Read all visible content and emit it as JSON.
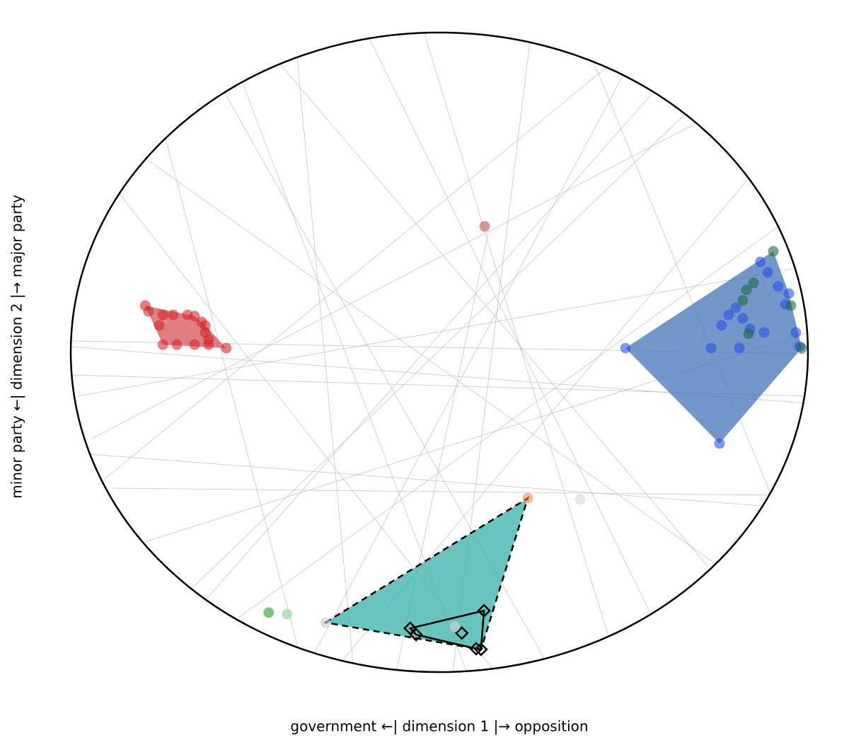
{
  "chart_data": {
    "type": "scatter",
    "x_label": "government ←| dimension 1 |→ opposition",
    "y_label": "minor party ←| dimension 2 |→ major party",
    "xlim": [
      -1,
      1
    ],
    "ylim": [
      -1,
      1
    ],
    "series": [
      {
        "color": "#d62728",
        "marker": "circle",
        "x": [
          -0.798,
          -0.789,
          -0.75,
          -0.722,
          -0.683,
          -0.664,
          -0.645,
          -0.635,
          -0.635,
          -0.626,
          -0.626,
          -0.664,
          -0.712,
          -0.75,
          -0.578,
          -0.76
        ],
        "y": [
          0.146,
          0.128,
          0.117,
          0.117,
          0.117,
          0.113,
          0.095,
          0.084,
          0.062,
          0.04,
          0.024,
          0.024,
          0.024,
          0.024,
          0.013,
          0.084
        ]
      },
      {
        "color": "#c0504d",
        "marker": "circle",
        "x": [
          0.123
        ],
        "y": [
          0.394
        ]
      },
      {
        "color": "#2a52e6",
        "marker": "circle",
        "x": [
          0.505,
          0.76,
          0.977,
          0.967,
          0.939,
          0.919,
          0.891,
          0.871,
          0.766,
          0.785,
          0.804,
          0.823,
          0.737,
          0.814,
          0.881,
          0.843,
          0.948
        ],
        "y": [
          0.013,
          -0.285,
          0.018,
          0.062,
          0.15,
          0.206,
          0.25,
          0.283,
          0.084,
          0.117,
          0.139,
          0.106,
          0.013,
          0.013,
          0.062,
          0.073,
          0.184
        ]
      },
      {
        "color": "#1e6b4a",
        "marker": "circle",
        "x": [
          0.906,
          0.852,
          0.833,
          0.954,
          0.839,
          0.983,
          0.823
        ],
        "y": [
          0.316,
          0.217,
          0.195,
          0.146,
          0.058,
          0.013,
          0.162
        ]
      },
      {
        "color": "#f4894b",
        "marker": "circle",
        "x": [
          0.24
        ],
        "y": [
          -0.456
        ]
      },
      {
        "color": "#d0d0d0",
        "marker": "circle",
        "x": [
          -0.309
        ],
        "y": [
          -0.845
        ]
      },
      {
        "color": "#000000",
        "marker": "diamond",
        "x": [
          0.121,
          -0.079,
          -0.063,
          0.061,
          0.1,
          0.113
        ],
        "y": [
          -0.808,
          -0.863,
          -0.883,
          -0.878,
          -0.927,
          -0.929
        ]
      },
      {
        "color": "#2ca02c",
        "marker": "circle",
        "x": [
          -0.463
        ],
        "y": [
          -0.814
        ]
      },
      {
        "color": "#8fd18f",
        "marker": "circle",
        "x": [
          -0.413
        ],
        "y": [
          -0.819
        ]
      },
      {
        "color": "#d6d6d6",
        "marker": "circle",
        "x": [
          0.382,
          0.042
        ],
        "y": [
          -0.46,
          -0.858
        ]
      }
    ],
    "hulls": [
      {
        "series": [
          0
        ],
        "fill": "#d9696b"
      },
      {
        "series": [
          2,
          3
        ],
        "fill": "#5b84c0"
      },
      {
        "series": [
          4,
          5,
          6
        ],
        "fill": "#4fb8b4",
        "stroke": "#000000",
        "dashed": true
      },
      {
        "series": [
          6
        ],
        "stroke": "#000000",
        "dashed": false
      }
    ]
  }
}
